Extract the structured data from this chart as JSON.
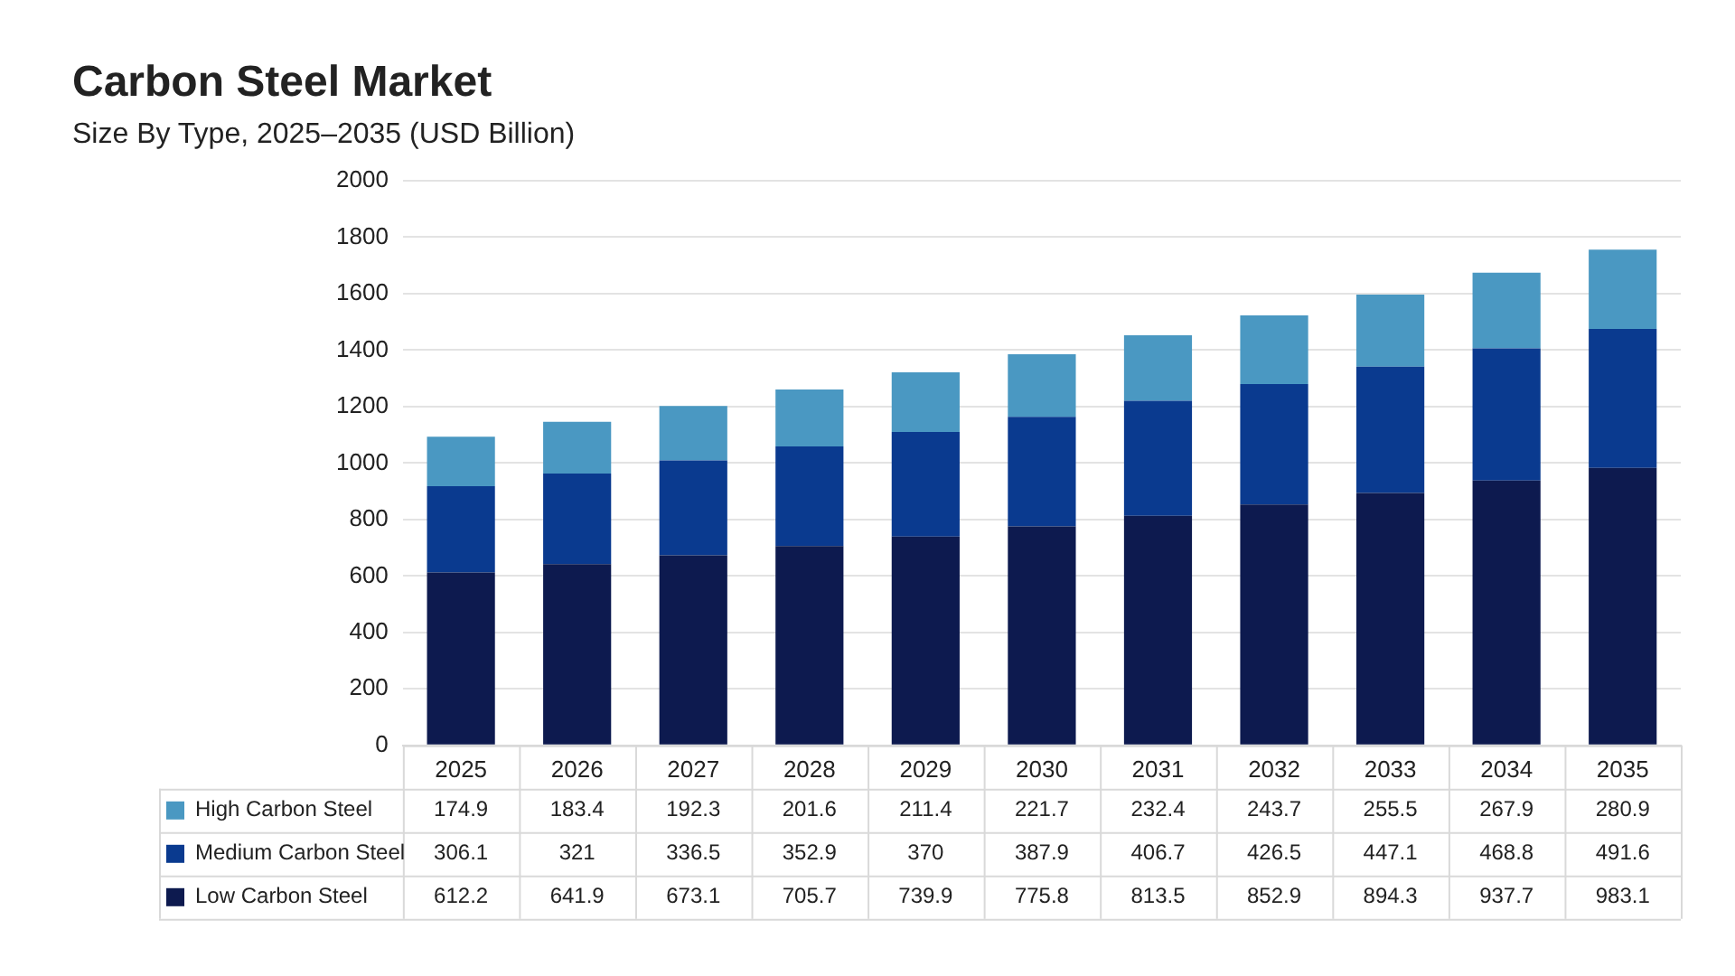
{
  "chart_data": {
    "type": "bar",
    "title": "Carbon Steel Market",
    "subtitle": "Size By Type, 2025–2035 (USD Billion)",
    "categories": [
      "2025",
      "2026",
      "2027",
      "2028",
      "2029",
      "2030",
      "2031",
      "2032",
      "2033",
      "2034",
      "2035"
    ],
    "stacked": true,
    "data_labels": true,
    "grid": "y",
    "legend": "bottom",
    "ylim": [
      0,
      2000
    ],
    "yticks": [
      0,
      200,
      400,
      600,
      800,
      1000,
      1200,
      1400,
      1600,
      1800,
      2000
    ],
    "series": [
      {
        "name": "Low Carbon Steel",
        "color": "#0d1a4f",
        "values": [
          612.2,
          641.9,
          673.1,
          705.7,
          739.9,
          775.8,
          813.5,
          852.9,
          894.3,
          937.7,
          983.1
        ]
      },
      {
        "name": "Medium Carbon Steel",
        "color": "#0a3a8f",
        "values": [
          306.1,
          321,
          336.5,
          352.9,
          370,
          387.9,
          406.7,
          426.5,
          447.1,
          468.8,
          491.6
        ]
      },
      {
        "name": "High Carbon Steel",
        "color": "#4a98c2",
        "values": [
          174.9,
          183.4,
          192.3,
          201.6,
          211.4,
          221.7,
          232.4,
          243.7,
          255.5,
          267.9,
          280.9
        ]
      }
    ]
  }
}
